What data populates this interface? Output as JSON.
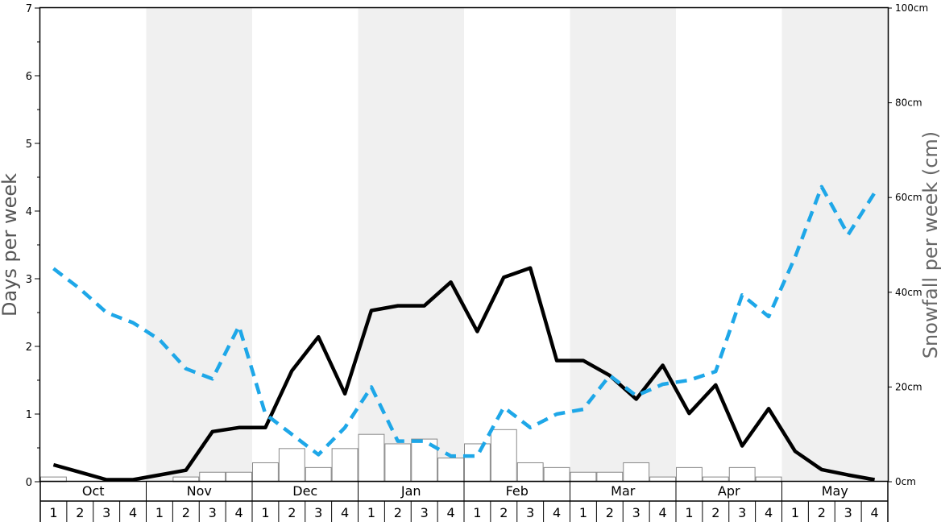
{
  "chart_data": {
    "type": "bar+line",
    "xlabel": "",
    "ylabel_left": "Days per week",
    "ylabel_right": "Snowfall per week (cm)",
    "ylim_left": [
      0,
      7
    ],
    "ylim_right": [
      0,
      100
    ],
    "left_ticks": [
      "0",
      "1",
      "2",
      "3",
      "4",
      "5",
      "6",
      "7"
    ],
    "right_ticks": [
      "0cm",
      "20cm",
      "40cm",
      "60cm",
      "80cm",
      "100cm"
    ],
    "months": [
      "Oct",
      "Nov",
      "Dec",
      "Jan",
      "Feb",
      "Mar",
      "Apr",
      "May"
    ],
    "weeks": [
      "1",
      "2",
      "3",
      "4"
    ],
    "shaded_months": [
      "Nov",
      "Jan",
      "Mar",
      "May"
    ],
    "colors": {
      "black_line": "#000000",
      "blue_line": "#1ea7e8",
      "bars_stroke": "#888888",
      "shade": "#f0f0f0"
    },
    "series": [
      {
        "kind": "bar",
        "axis": "right",
        "unit": "cm",
        "values": [
          1,
          0,
          0,
          0,
          0,
          1,
          2,
          2,
          4,
          7,
          3,
          7,
          10,
          8,
          9,
          5,
          8,
          11,
          4,
          3,
          2,
          2,
          4,
          1,
          3,
          1,
          3,
          1,
          0,
          0,
          0,
          0
        ]
      },
      {
        "kind": "line",
        "axis": "left",
        "style": "solid",
        "color": "#000000",
        "values": [
          0.25,
          0.14,
          0.03,
          0.03,
          0.1,
          0.17,
          0.74,
          0.8,
          0.8,
          1.64,
          2.14,
          1.3,
          2.53,
          2.6,
          2.6,
          2.95,
          2.22,
          3.02,
          3.16,
          1.79,
          1.79,
          1.57,
          1.22,
          1.72,
          1.01,
          1.43,
          0.53,
          1.08,
          0.45,
          0.18,
          0.1,
          0.03
        ]
      },
      {
        "kind": "line",
        "axis": "left",
        "style": "dashed",
        "color": "#1ea7e8",
        "values": [
          3.15,
          2.85,
          2.5,
          2.35,
          2.1,
          1.67,
          1.52,
          2.3,
          1.0,
          0.7,
          0.4,
          0.8,
          1.4,
          0.6,
          0.6,
          0.38,
          0.38,
          1.1,
          0.8,
          1.0,
          1.07,
          1.57,
          1.27,
          1.44,
          1.5,
          1.63,
          2.76,
          2.44,
          3.32,
          4.36,
          3.65,
          4.27
        ]
      }
    ]
  }
}
